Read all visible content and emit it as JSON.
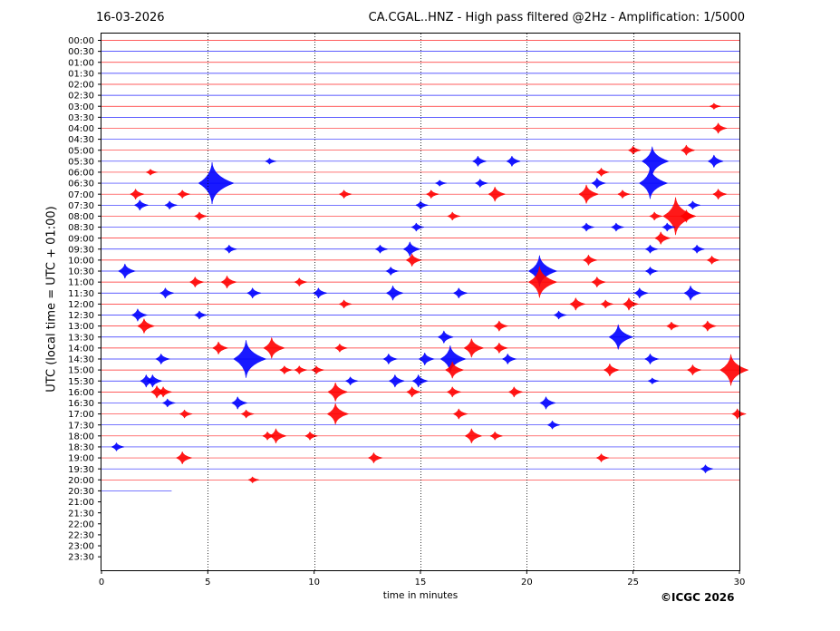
{
  "header": {
    "date": "16-03-2026",
    "title": "CA.CGAL..HNZ - High pass filtered @2Hz - Amplification: 1/5000"
  },
  "footer": {
    "copyright": "©ICGC 2026"
  },
  "colors": {
    "trace_a": "#ff0000",
    "trace_b": "#0000ff",
    "grid": "#000000"
  },
  "chart_data": {
    "type": "line",
    "title": "CA.CGAL..HNZ - High pass filtered @2Hz - Amplification: 1/5000",
    "xlabel": "time in minutes",
    "ylabel": "UTC (local time = UTC + 01:00)",
    "xlim": [
      0,
      30
    ],
    "xticks": [
      0,
      5,
      10,
      15,
      20,
      25,
      30
    ],
    "grid": "vertical dotted at x ticks",
    "rows": [
      "00:00",
      "00:30",
      "01:00",
      "01:30",
      "02:00",
      "02:30",
      "03:00",
      "03:30",
      "04:00",
      "04:30",
      "05:00",
      "05:30",
      "06:00",
      "06:30",
      "07:00",
      "07:30",
      "08:00",
      "08:30",
      "09:00",
      "09:30",
      "10:00",
      "10:30",
      "11:00",
      "11:30",
      "12:00",
      "12:30",
      "13:00",
      "13:30",
      "14:00",
      "14:30",
      "15:00",
      "15:30",
      "16:00",
      "16:30",
      "17:00",
      "17:30",
      "18:00",
      "18:30",
      "19:00",
      "19:30",
      "20:00",
      "20:30",
      "21:00",
      "21:30",
      "22:00",
      "22:30",
      "23:00",
      "23:30"
    ],
    "traces_end_minute": 3.3,
    "events": [
      {
        "row": "03:00",
        "t": 28.8,
        "amp": 0.3
      },
      {
        "row": "04:00",
        "t": 29.0,
        "amp": 0.5
      },
      {
        "row": "05:00",
        "t": 25.0,
        "amp": 0.4
      },
      {
        "row": "05:00",
        "t": 27.5,
        "amp": 0.5
      },
      {
        "row": "05:30",
        "t": 7.9,
        "amp": 0.3
      },
      {
        "row": "05:30",
        "t": 17.7,
        "amp": 0.5
      },
      {
        "row": "05:30",
        "t": 19.3,
        "amp": 0.5
      },
      {
        "row": "05:30",
        "t": 25.9,
        "amp": 1.4
      },
      {
        "row": "05:30",
        "t": 28.8,
        "amp": 0.6
      },
      {
        "row": "06:00",
        "t": 2.3,
        "amp": 0.3
      },
      {
        "row": "06:00",
        "t": 23.5,
        "amp": 0.4
      },
      {
        "row": "06:30",
        "t": 5.2,
        "amp": 2.0
      },
      {
        "row": "06:30",
        "t": 15.9,
        "amp": 0.3
      },
      {
        "row": "06:30",
        "t": 17.8,
        "amp": 0.4
      },
      {
        "row": "06:30",
        "t": 23.3,
        "amp": 0.5
      },
      {
        "row": "06:30",
        "t": 25.8,
        "amp": 1.5
      },
      {
        "row": "07:00",
        "t": 1.6,
        "amp": 0.5
      },
      {
        "row": "07:00",
        "t": 3.8,
        "amp": 0.4
      },
      {
        "row": "07:00",
        "t": 11.4,
        "amp": 0.4
      },
      {
        "row": "07:00",
        "t": 15.5,
        "amp": 0.4
      },
      {
        "row": "07:00",
        "t": 18.5,
        "amp": 0.7
      },
      {
        "row": "07:00",
        "t": 22.8,
        "amp": 0.9
      },
      {
        "row": "07:00",
        "t": 24.5,
        "amp": 0.4
      },
      {
        "row": "07:00",
        "t": 29.0,
        "amp": 0.5
      },
      {
        "row": "07:30",
        "t": 1.8,
        "amp": 0.5
      },
      {
        "row": "07:30",
        "t": 3.2,
        "amp": 0.4
      },
      {
        "row": "07:30",
        "t": 15.0,
        "amp": 0.4
      },
      {
        "row": "07:30",
        "t": 27.8,
        "amp": 0.4
      },
      {
        "row": "08:00",
        "t": 4.6,
        "amp": 0.4
      },
      {
        "row": "08:00",
        "t": 16.5,
        "amp": 0.4
      },
      {
        "row": "08:00",
        "t": 26.0,
        "amp": 0.4
      },
      {
        "row": "08:00",
        "t": 27.0,
        "amp": 1.8
      },
      {
        "row": "08:00",
        "t": 27.5,
        "amp": 0.6
      },
      {
        "row": "08:30",
        "t": 14.8,
        "amp": 0.4
      },
      {
        "row": "08:30",
        "t": 22.8,
        "amp": 0.4
      },
      {
        "row": "08:30",
        "t": 24.2,
        "amp": 0.4
      },
      {
        "row": "08:30",
        "t": 26.6,
        "amp": 0.4
      },
      {
        "row": "09:00",
        "t": 26.3,
        "amp": 0.6
      },
      {
        "row": "09:30",
        "t": 6.0,
        "amp": 0.4
      },
      {
        "row": "09:30",
        "t": 13.1,
        "amp": 0.4
      },
      {
        "row": "09:30",
        "t": 14.5,
        "amp": 0.7
      },
      {
        "row": "09:30",
        "t": 25.8,
        "amp": 0.4
      },
      {
        "row": "09:30",
        "t": 28.0,
        "amp": 0.4
      },
      {
        "row": "10:00",
        "t": 14.6,
        "amp": 0.6
      },
      {
        "row": "10:00",
        "t": 22.9,
        "amp": 0.5
      },
      {
        "row": "10:00",
        "t": 28.7,
        "amp": 0.4
      },
      {
        "row": "10:30",
        "t": 1.1,
        "amp": 0.7
      },
      {
        "row": "10:30",
        "t": 13.6,
        "amp": 0.4
      },
      {
        "row": "10:30",
        "t": 20.6,
        "amp": 1.5
      },
      {
        "row": "10:30",
        "t": 25.8,
        "amp": 0.4
      },
      {
        "row": "11:00",
        "t": 4.4,
        "amp": 0.5
      },
      {
        "row": "11:00",
        "t": 5.9,
        "amp": 0.6
      },
      {
        "row": "11:00",
        "t": 9.3,
        "amp": 0.4
      },
      {
        "row": "11:00",
        "t": 20.6,
        "amp": 1.5
      },
      {
        "row": "11:00",
        "t": 23.3,
        "amp": 0.5
      },
      {
        "row": "11:30",
        "t": 3.0,
        "amp": 0.5
      },
      {
        "row": "11:30",
        "t": 7.1,
        "amp": 0.5
      },
      {
        "row": "11:30",
        "t": 10.2,
        "amp": 0.5
      },
      {
        "row": "11:30",
        "t": 13.7,
        "amp": 0.7
      },
      {
        "row": "11:30",
        "t": 16.8,
        "amp": 0.5
      },
      {
        "row": "11:30",
        "t": 25.3,
        "amp": 0.5
      },
      {
        "row": "11:30",
        "t": 27.7,
        "amp": 0.7
      },
      {
        "row": "12:00",
        "t": 11.4,
        "amp": 0.4
      },
      {
        "row": "12:00",
        "t": 22.3,
        "amp": 0.6
      },
      {
        "row": "12:00",
        "t": 23.7,
        "amp": 0.4
      },
      {
        "row": "12:00",
        "t": 24.8,
        "amp": 0.6
      },
      {
        "row": "12:30",
        "t": 1.7,
        "amp": 0.6
      },
      {
        "row": "12:30",
        "t": 4.6,
        "amp": 0.4
      },
      {
        "row": "12:30",
        "t": 21.5,
        "amp": 0.4
      },
      {
        "row": "13:00",
        "t": 2.0,
        "amp": 0.7
      },
      {
        "row": "13:00",
        "t": 18.7,
        "amp": 0.5
      },
      {
        "row": "13:00",
        "t": 26.8,
        "amp": 0.4
      },
      {
        "row": "13:00",
        "t": 28.5,
        "amp": 0.5
      },
      {
        "row": "13:30",
        "t": 16.1,
        "amp": 0.6
      },
      {
        "row": "13:30",
        "t": 24.3,
        "amp": 1.2
      },
      {
        "row": "14:00",
        "t": 5.5,
        "amp": 0.6
      },
      {
        "row": "14:00",
        "t": 8.0,
        "amp": 1.0
      },
      {
        "row": "14:00",
        "t": 11.2,
        "amp": 0.4
      },
      {
        "row": "14:00",
        "t": 17.4,
        "amp": 0.9
      },
      {
        "row": "14:00",
        "t": 18.7,
        "amp": 0.5
      },
      {
        "row": "14:30",
        "t": 2.8,
        "amp": 0.5
      },
      {
        "row": "14:30",
        "t": 6.8,
        "amp": 1.8
      },
      {
        "row": "14:30",
        "t": 13.5,
        "amp": 0.5
      },
      {
        "row": "14:30",
        "t": 15.2,
        "amp": 0.6
      },
      {
        "row": "14:30",
        "t": 16.4,
        "amp": 1.3
      },
      {
        "row": "14:30",
        "t": 19.1,
        "amp": 0.5
      },
      {
        "row": "14:30",
        "t": 25.8,
        "amp": 0.5
      },
      {
        "row": "15:00",
        "t": 8.6,
        "amp": 0.4
      },
      {
        "row": "15:00",
        "t": 9.3,
        "amp": 0.4
      },
      {
        "row": "15:00",
        "t": 10.1,
        "amp": 0.4
      },
      {
        "row": "15:00",
        "t": 16.5,
        "amp": 0.8
      },
      {
        "row": "15:00",
        "t": 23.9,
        "amp": 0.6
      },
      {
        "row": "15:00",
        "t": 27.8,
        "amp": 0.5
      },
      {
        "row": "15:00",
        "t": 29.6,
        "amp": 1.5
      },
      {
        "row": "15:30",
        "t": 2.1,
        "amp": 0.6
      },
      {
        "row": "15:30",
        "t": 2.4,
        "amp": 0.6
      },
      {
        "row": "15:30",
        "t": 11.7,
        "amp": 0.4
      },
      {
        "row": "15:30",
        "t": 13.8,
        "amp": 0.6
      },
      {
        "row": "15:30",
        "t": 14.9,
        "amp": 0.6
      },
      {
        "row": "15:30",
        "t": 25.9,
        "amp": 0.3
      },
      {
        "row": "16:00",
        "t": 2.6,
        "amp": 0.6
      },
      {
        "row": "16:00",
        "t": 2.9,
        "amp": 0.5
      },
      {
        "row": "16:00",
        "t": 11.0,
        "amp": 0.9
      },
      {
        "row": "16:00",
        "t": 14.6,
        "amp": 0.5
      },
      {
        "row": "16:00",
        "t": 16.5,
        "amp": 0.5
      },
      {
        "row": "16:00",
        "t": 19.4,
        "amp": 0.5
      },
      {
        "row": "16:30",
        "t": 3.1,
        "amp": 0.4
      },
      {
        "row": "16:30",
        "t": 6.4,
        "amp": 0.6
      },
      {
        "row": "16:30",
        "t": 20.9,
        "amp": 0.6
      },
      {
        "row": "17:00",
        "t": 3.9,
        "amp": 0.4
      },
      {
        "row": "17:00",
        "t": 6.8,
        "amp": 0.4
      },
      {
        "row": "17:00",
        "t": 11.0,
        "amp": 1.0
      },
      {
        "row": "17:00",
        "t": 16.8,
        "amp": 0.5
      },
      {
        "row": "17:00",
        "t": 29.9,
        "amp": 0.5
      },
      {
        "row": "17:30",
        "t": 21.2,
        "amp": 0.4
      },
      {
        "row": "18:00",
        "t": 7.8,
        "amp": 0.4
      },
      {
        "row": "18:00",
        "t": 8.2,
        "amp": 0.7
      },
      {
        "row": "18:00",
        "t": 9.8,
        "amp": 0.4
      },
      {
        "row": "18:00",
        "t": 17.4,
        "amp": 0.7
      },
      {
        "row": "18:00",
        "t": 18.5,
        "amp": 0.4
      },
      {
        "row": "18:30",
        "t": 0.7,
        "amp": 0.4
      },
      {
        "row": "19:00",
        "t": 3.8,
        "amp": 0.6
      },
      {
        "row": "19:00",
        "t": 12.8,
        "amp": 0.5
      },
      {
        "row": "19:00",
        "t": 23.5,
        "amp": 0.4
      },
      {
        "row": "19:30",
        "t": 28.4,
        "amp": 0.4
      },
      {
        "row": "20:00",
        "t": 7.1,
        "amp": 0.3
      }
    ]
  }
}
